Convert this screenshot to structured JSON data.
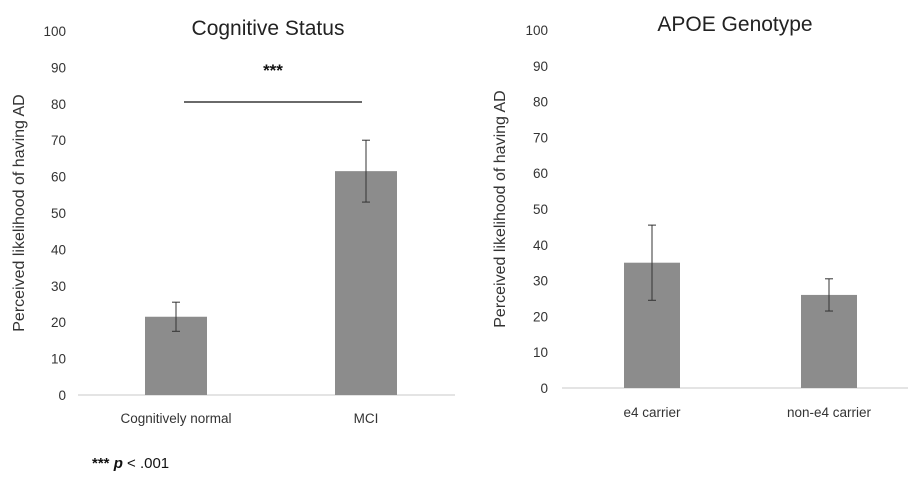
{
  "chart_data": [
    {
      "type": "bar",
      "title": "Cognitive Status",
      "xlabel": "",
      "ylabel": "Perceived likelihood of having AD",
      "ylim": [
        0,
        100
      ],
      "yticks": [
        0,
        10,
        20,
        30,
        40,
        50,
        60,
        70,
        80,
        90,
        100
      ],
      "categories": [
        "Cognitively normal",
        "MCI"
      ],
      "values": [
        21.5,
        61.5
      ],
      "error_low": [
        17.5,
        53
      ],
      "error_high": [
        25.5,
        70
      ],
      "bar_color": "#8c8c8c",
      "grid": false,
      "significance": {
        "label": "***",
        "between": [
          "Cognitively normal",
          "MCI"
        ]
      }
    },
    {
      "type": "bar",
      "title": "APOE Genotype",
      "xlabel": "",
      "ylabel": "Perceived likelihood of having AD",
      "ylim": [
        0,
        100
      ],
      "yticks": [
        0,
        10,
        20,
        30,
        40,
        50,
        60,
        70,
        80,
        90,
        100
      ],
      "categories": [
        "e4 carrier",
        "non-e4 carrier"
      ],
      "values": [
        35,
        26
      ],
      "error_low": [
        24.5,
        21.5
      ],
      "error_high": [
        45.5,
        30.5
      ],
      "bar_color": "#8c8c8c",
      "grid": false
    }
  ],
  "footnote": {
    "stars": "***",
    "p": "p",
    "rest": " < .001"
  }
}
